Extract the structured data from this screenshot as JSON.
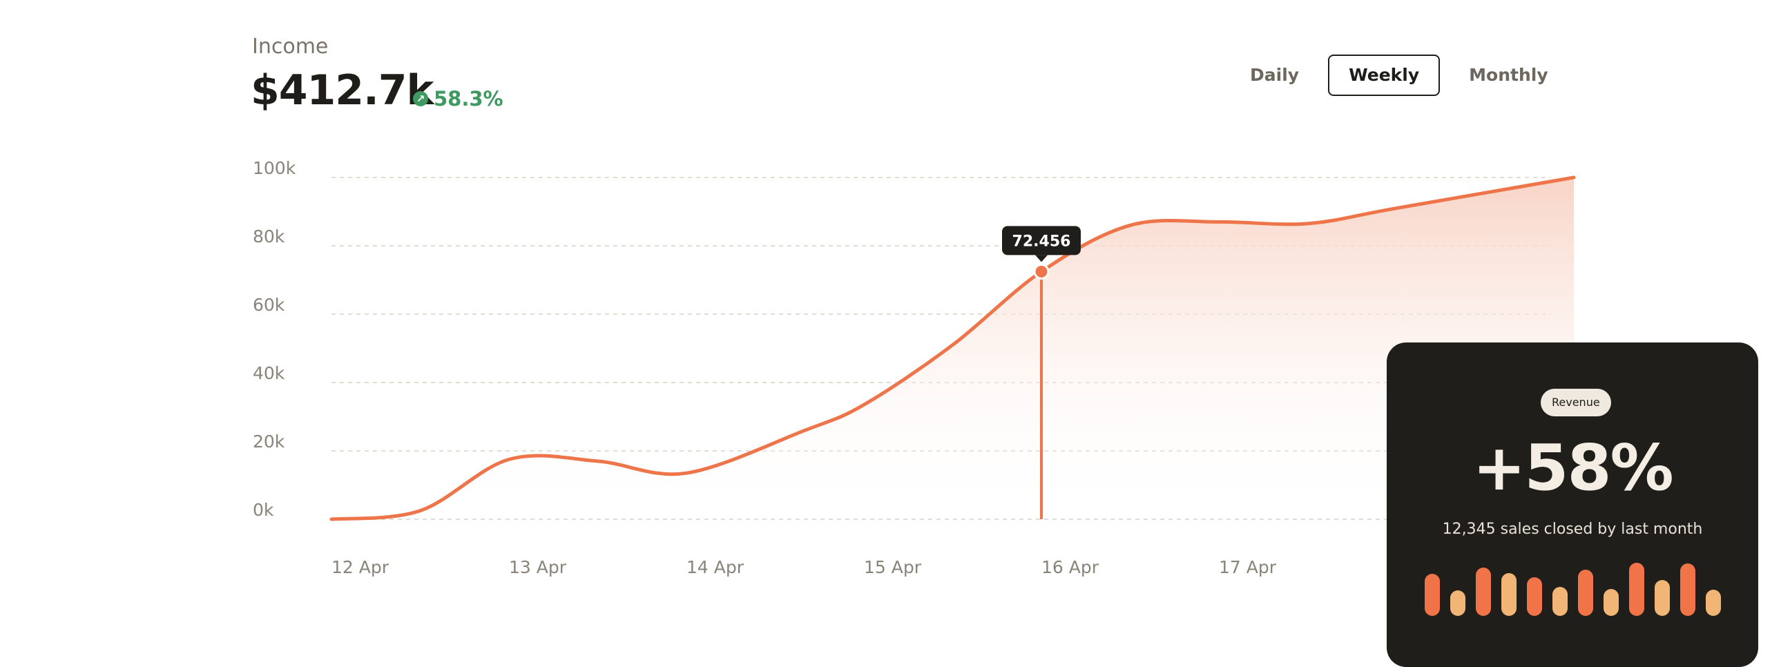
{
  "header": {
    "label": "Income",
    "value": "$412.7k",
    "change": "58.3%"
  },
  "tabs": [
    {
      "label": "Daily",
      "active": false
    },
    {
      "label": "Weekly",
      "active": true
    },
    {
      "label": "Monthly",
      "active": false
    }
  ],
  "colors": {
    "line": "#ee744a",
    "fill_top": "#f8d4c6",
    "grid": "#d6d1c9",
    "axis_text": "#8a8379",
    "positive": "#3f9a62",
    "card_bg": "#1f1e1a",
    "bar_orange": "#f07447",
    "bar_peach": "#f1b675"
  },
  "chart_data": {
    "type": "area",
    "x_ticks": [
      "12 Apr",
      "13 Apr",
      "14 Apr",
      "15 Apr",
      "16 Apr",
      "17 Apr"
    ],
    "y_ticks": [
      "0k",
      "20k",
      "40k",
      "60k",
      "80k",
      "100k"
    ],
    "ylim": [
      0,
      100000
    ],
    "xlim": [
      "12 Apr",
      "19 Apr"
    ],
    "series": [
      {
        "points": [
          [
            "12 Apr",
            0
          ],
          [
            "12 Apr 12h",
            2500
          ],
          [
            "13 Apr",
            17500
          ],
          [
            "13 Apr 12h",
            17000
          ],
          [
            "14 Apr",
            13500
          ],
          [
            "14 Apr 16h",
            26000
          ],
          [
            "15 Apr",
            33500
          ],
          [
            "15 Apr 12h",
            51000
          ],
          [
            "16 Apr",
            72456
          ],
          [
            "16 Apr 12h",
            86000
          ],
          [
            "17 Apr",
            87000
          ],
          [
            "17 Apr 12h",
            86500
          ],
          [
            "18 Apr",
            91000
          ],
          [
            "19 Apr",
            100000
          ]
        ]
      }
    ],
    "highlight": {
      "x": "16 Apr",
      "y": 72456,
      "label": "72.456"
    },
    "grid": true
  },
  "card": {
    "badge": "Revenue",
    "headline": "+58%",
    "subtitle": "12,345 sales closed by last month",
    "bars": [
      {
        "value": 0.69,
        "tone": "orange"
      },
      {
        "value": 0.42,
        "tone": "peach"
      },
      {
        "value": 0.8,
        "tone": "orange"
      },
      {
        "value": 0.71,
        "tone": "peach"
      },
      {
        "value": 0.64,
        "tone": "orange"
      },
      {
        "value": 0.48,
        "tone": "peach"
      },
      {
        "value": 0.76,
        "tone": "orange"
      },
      {
        "value": 0.44,
        "tone": "peach"
      },
      {
        "value": 0.87,
        "tone": "orange"
      },
      {
        "value": 0.59,
        "tone": "peach"
      },
      {
        "value": 0.86,
        "tone": "orange"
      },
      {
        "value": 0.43,
        "tone": "peach"
      }
    ]
  }
}
